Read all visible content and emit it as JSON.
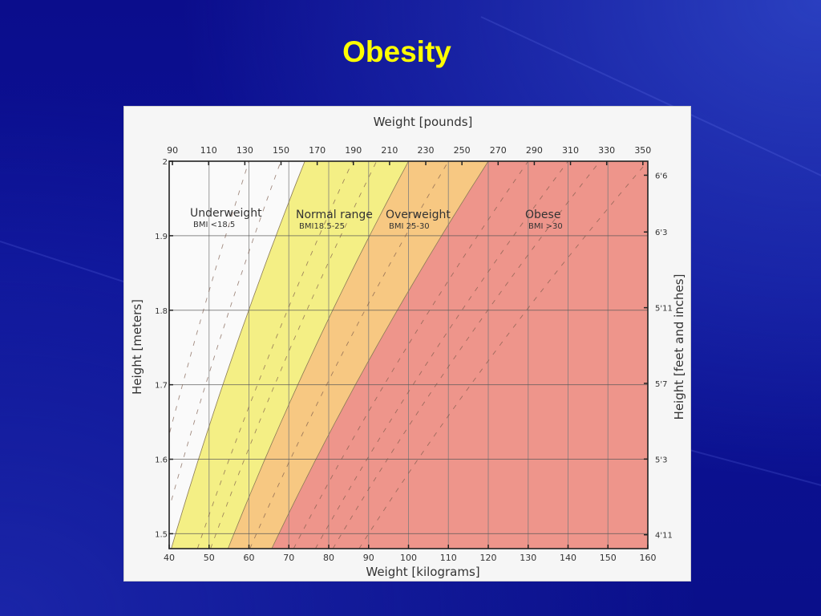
{
  "slide": {
    "title": "Obesity",
    "background_color": "#0a0f8a",
    "title_color": "#ffff00"
  },
  "chart_data": {
    "type": "area",
    "title": "",
    "xlabel": "Weight [kilograms]",
    "x2label": "Weight [pounds]",
    "ylabel": "Height [meters]",
    "y2label": "Height [feet and inches]",
    "xlim": [
      40,
      160
    ],
    "ylim": [
      1.48,
      2.0
    ],
    "x_ticks": [
      40,
      50,
      60,
      70,
      80,
      90,
      100,
      110,
      120,
      130,
      140,
      150,
      160
    ],
    "x2_ticks_lb": [
      90,
      110,
      130,
      150,
      170,
      190,
      210,
      230,
      250,
      270,
      290,
      310,
      330,
      350
    ],
    "y_ticks": [
      "1.5",
      "1.6",
      "1.7",
      "1.8",
      "1.9",
      "2"
    ],
    "y_tick_values": [
      1.5,
      1.6,
      1.7,
      1.8,
      1.9,
      2.0
    ],
    "y2_ticks": [
      "4'11",
      "5'3",
      "5'7",
      "5'11",
      "6'3",
      "6'6"
    ],
    "grid": true,
    "formula": "weight_kg = BMI * height_m^2",
    "zones": [
      {
        "name": "Underweight",
        "sublabel": "BMI <18.5",
        "bmi_min": 0,
        "bmi_max": 18.5,
        "color": "#fafafa"
      },
      {
        "name": "Normal range",
        "sublabel": "BMI18.5-25",
        "bmi_min": 18.5,
        "bmi_max": 25,
        "color": "#f4ef85"
      },
      {
        "name": "Overweight",
        "sublabel": "BMI 25-30",
        "bmi_min": 25,
        "bmi_max": 30,
        "color": "#f7c882"
      },
      {
        "name": "Obese",
        "sublabel": "BMI >30",
        "bmi_min": 30,
        "bmi_max": 999,
        "color": "#ee958b"
      }
    ],
    "boundaries": [
      {
        "bmi": 18.5,
        "points": [
          [
            40.4,
            1.478
          ],
          [
            74.0,
            2.0
          ]
        ]
      },
      {
        "bmi": 25,
        "points": [
          [
            54.6,
            1.478
          ],
          [
            100.0,
            2.0
          ]
        ]
      },
      {
        "bmi": 30,
        "points": [
          [
            65.5,
            1.478
          ],
          [
            120.0,
            2.0
          ]
        ]
      }
    ],
    "dashed_iso_bmi": [
      15,
      17,
      21.5,
      23,
      27.5,
      32.5,
      35,
      37,
      40
    ]
  }
}
